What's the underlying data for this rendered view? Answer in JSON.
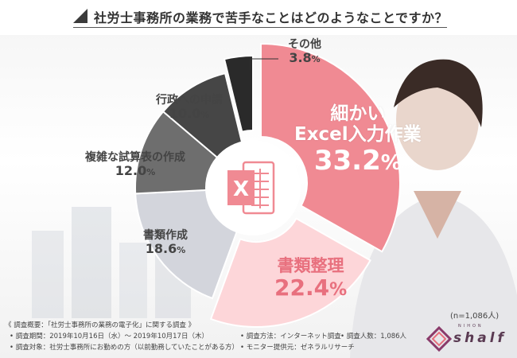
{
  "title": "社労士事務所の業務で苦手なことはどのようなことですか？",
  "sample_size": "(n=1,086人)",
  "chart_data": {
    "type": "pie",
    "style": "donut",
    "unit": "%",
    "slices": [
      {
        "label": "細かい Excel入力作業",
        "label_lines": [
          "細かい",
          "Excel入力作業"
        ],
        "value": 33.2,
        "value_text": "33.2",
        "color": "#f08a93"
      },
      {
        "label": "書類整理",
        "label_lines": [
          "書類整理"
        ],
        "value": 22.4,
        "value_text": "22.4",
        "color": "#fdd6d9"
      },
      {
        "label": "書類作成",
        "label_lines": [
          "書類作成"
        ],
        "value": 18.6,
        "value_text": "18.6",
        "color": "#d3d5dc"
      },
      {
        "label": "複雑な試算表の作成",
        "label_lines": [
          "複雑な試算表の作成"
        ],
        "value": 12.0,
        "value_text": "12.0",
        "color": "#6e6e6e"
      },
      {
        "label": "行政への申請",
        "label_lines": [
          "行政への申請"
        ],
        "value": 10.0,
        "value_text": "10.0",
        "color": "#464646"
      },
      {
        "label": "その他",
        "label_lines": [
          "その他"
        ],
        "value": 3.8,
        "value_text": "3.8",
        "color": "#2a2a2a"
      }
    ],
    "start": "12 o'clock",
    "direction": "clockwise",
    "center_icon": "excel-icon",
    "center_icon_letter": "X"
  },
  "footer": {
    "overview": "《 調査概要：「社労士事務所の業務の電子化」に関する調査 》",
    "period": "• 調査期間：2019年10月16日（水）～ 2019年10月17日（木）",
    "target": "• 調査対象：社労士事務所にお勤めの方（以前勤務していたことがある方）",
    "method": "• 調査方法：インターネット調査",
    "respondents": "• 調査人数：1,086人",
    "provider": "• モニター提供元：ゼネラルリサーチ"
  },
  "logo": {
    "sub": "NIHON",
    "name": "shalf",
    "icon": "shalf-logo-icon"
  },
  "colors": {
    "accent": "#f08a93",
    "title": "#333333"
  }
}
